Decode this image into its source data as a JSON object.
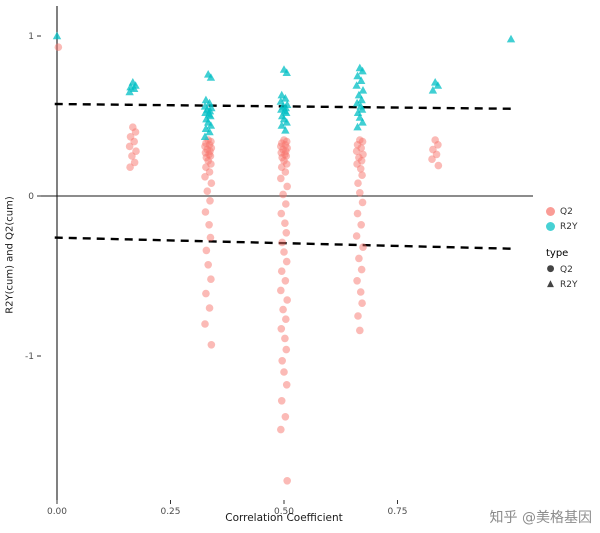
{
  "watermark": "知乎 @美格基因",
  "chart_data": {
    "type": "scatter",
    "title": "",
    "xlabel": "Correlation Coefficient",
    "ylabel": "R2Y(cum) and Q2(cum)",
    "xlim": [
      -0.04,
      1.05
    ],
    "ylim": [
      -1.9,
      1.19
    ],
    "grid": false,
    "legend_position": "right",
    "x_ticks": [
      {
        "value": 0.0,
        "label": "0.00"
      },
      {
        "value": 0.25,
        "label": "0.25"
      },
      {
        "value": 0.5,
        "label": "0.50"
      },
      {
        "value": 0.75,
        "label": "0.75"
      }
    ],
    "y_ticks": [
      {
        "value": 1,
        "label": "1"
      },
      {
        "value": 0,
        "label": "0"
      },
      {
        "value": -1,
        "label": "-1"
      }
    ],
    "reference_lines": {
      "vline_x": 0,
      "hline_y": 0
    },
    "regression_lines": [
      {
        "series": "R2Y",
        "x1": -0.005,
        "y1": 0.575,
        "x2": 1.01,
        "y2": 0.545,
        "style": "dashed",
        "color": "#000000"
      },
      {
        "series": "Q2",
        "x1": -0.005,
        "y1": -0.26,
        "x2": 1.01,
        "y2": -0.33,
        "style": "dashed",
        "color": "#000000"
      }
    ],
    "series": [
      {
        "name": "Q2",
        "shape": "circle",
        "color": "#F8766D",
        "opacity": 0.5,
        "clusters": [
          {
            "x": 0.003,
            "ys": [
              0.93
            ]
          },
          {
            "x": 0.167,
            "ys": [
              0.43,
              0.4,
              0.37,
              0.34,
              0.31,
              0.28,
              0.25,
              0.21,
              0.18
            ]
          },
          {
            "x": 0.333,
            "ys": [
              0.35,
              0.34,
              0.33,
              0.32,
              0.31,
              0.3,
              0.29,
              0.28,
              0.27,
              0.26,
              0.25,
              0.24,
              0.22,
              0.2,
              0.18,
              0.15,
              0.12,
              0.08,
              0.03,
              -0.03,
              -0.1,
              -0.18,
              -0.26,
              -0.34,
              -0.43,
              -0.52,
              -0.61,
              -0.7,
              -0.8,
              -0.93
            ]
          },
          {
            "x": 0.5,
            "ys": [
              0.35,
              0.34,
              0.33,
              0.32,
              0.31,
              0.3,
              0.29,
              0.28,
              0.27,
              0.26,
              0.25,
              0.24,
              0.22,
              0.2,
              0.18,
              0.15,
              0.11,
              0.06,
              0.01,
              -0.05,
              -0.11,
              -0.17,
              -0.23,
              -0.29,
              -0.35,
              -0.41,
              -0.47,
              -0.53,
              -0.59,
              -0.65,
              -0.71,
              -0.77,
              -0.83,
              -0.89,
              -0.96,
              -1.03,
              -1.1,
              -1.18,
              -1.28,
              -1.38,
              -1.46,
              -1.78
            ]
          },
          {
            "x": 0.667,
            "ys": [
              0.35,
              0.34,
              0.32,
              0.3,
              0.28,
              0.26,
              0.24,
              0.22,
              0.2,
              0.17,
              0.13,
              0.08,
              0.02,
              -0.04,
              -0.11,
              -0.18,
              -0.25,
              -0.32,
              -0.39,
              -0.46,
              -0.53,
              -0.6,
              -0.67,
              -0.75,
              -0.84
            ]
          },
          {
            "x": 0.833,
            "ys": [
              0.35,
              0.32,
              0.29,
              0.26,
              0.23,
              0.19
            ]
          }
        ]
      },
      {
        "name": "R2Y",
        "shape": "triangle",
        "color": "#00BFC4",
        "opacity": 0.75,
        "clusters": [
          {
            "x": 0.0,
            "ys": [
              1.0
            ]
          },
          {
            "x": 0.167,
            "ys": [
              0.71,
              0.69,
              0.68,
              0.67,
              0.65
            ]
          },
          {
            "x": 0.333,
            "ys": [
              0.76,
              0.74,
              0.6,
              0.58,
              0.56,
              0.55,
              0.54,
              0.53,
              0.52,
              0.51,
              0.5,
              0.48,
              0.46,
              0.44,
              0.42,
              0.4,
              0.37
            ]
          },
          {
            "x": 0.5,
            "ys": [
              0.79,
              0.77,
              0.63,
              0.61,
              0.59,
              0.57,
              0.56,
              0.55,
              0.54,
              0.53,
              0.52,
              0.5,
              0.48,
              0.46,
              0.44,
              0.41
            ]
          },
          {
            "x": 0.667,
            "ys": [
              0.8,
              0.78,
              0.75,
              0.72,
              0.69,
              0.66,
              0.63,
              0.6,
              0.58,
              0.56,
              0.54,
              0.52,
              0.49,
              0.46,
              0.43
            ]
          },
          {
            "x": 0.833,
            "ys": [
              0.71,
              0.69,
              0.66
            ]
          },
          {
            "x": 1.0,
            "ys": [
              0.98
            ]
          }
        ]
      }
    ],
    "legend": {
      "color": {
        "items": [
          {
            "label": "Q2",
            "color": "#F8766D"
          },
          {
            "label": "R2Y",
            "color": "#00BFC4"
          }
        ]
      },
      "shape": {
        "title": "type",
        "items": [
          {
            "label": "Q2",
            "glyph": "●"
          },
          {
            "label": "R2Y",
            "glyph": "▲"
          }
        ]
      }
    }
  }
}
